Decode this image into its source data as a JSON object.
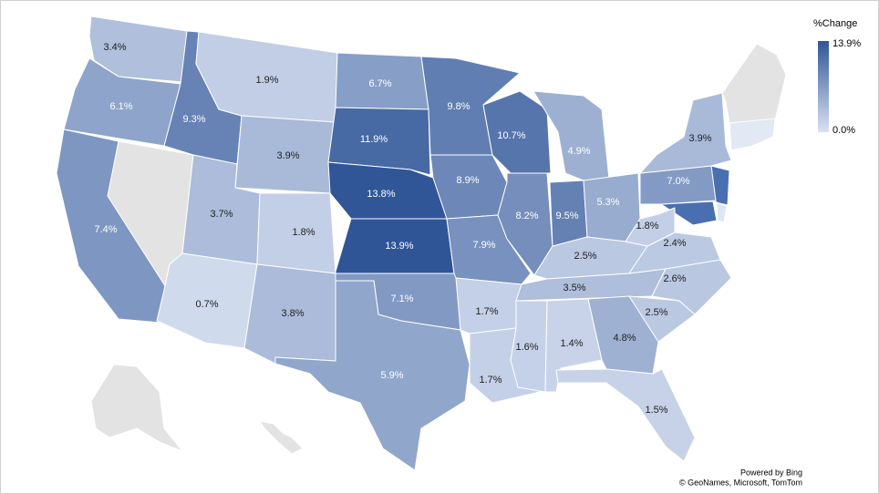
{
  "map": {
    "legend": {
      "title": "%Change",
      "range": [
        0,
        13.9
      ],
      "ticks": [
        {
          "value": 0,
          "label": "0.0%"
        },
        {
          "value": 13.9,
          "label": "13.9%"
        }
      ],
      "colors": [
        "#d9e1f2",
        "#2f5597"
      ]
    },
    "regions": [
      {
        "value": 3.4,
        "value_label": "3.4%"
      },
      {
        "value": 6.1,
        "value_label": "6.1%"
      },
      {
        "value": 7.4,
        "value_label": "7.4%"
      },
      {
        "value": 9.3,
        "value_label": "9.3%"
      },
      {
        "value": 1.9,
        "value_label": "1.9%"
      },
      {
        "value": 3.9,
        "value_label": "3.9%"
      },
      {
        "value": 3.7,
        "value_label": "3.7%"
      },
      {
        "value": 0.7,
        "value_label": "0.7%"
      },
      {
        "value": 1.8,
        "value_label": "1.8%"
      },
      {
        "value": 3.8,
        "value_label": "3.8%"
      },
      {
        "value": 6.7,
        "value_label": "6.7%"
      },
      {
        "value": 11.9,
        "value_label": "11.9%"
      },
      {
        "value": 13.8,
        "value_label": "13.8%"
      },
      {
        "value": 13.9,
        "value_label": "13.9%"
      },
      {
        "value": 7.1,
        "value_label": "7.1%"
      },
      {
        "value": 5.9,
        "value_label": "5.9%"
      },
      {
        "value": 9.8,
        "value_label": "9.8%"
      },
      {
        "value": 8.9,
        "value_label": "8.9%"
      },
      {
        "value": 7.9,
        "value_label": "7.9%"
      },
      {
        "value": 1.7,
        "value_label": "1.7%"
      },
      {
        "value": 1.7,
        "value_label": "1.7%"
      },
      {
        "value": 10.7,
        "value_label": "10.7%"
      },
      {
        "value": 8.2,
        "value_label": "8.2%"
      },
      {
        "value": 9.5,
        "value_label": "9.5%"
      },
      {
        "value": 4.9,
        "value_label": "4.9%"
      },
      {
        "value": 5.3,
        "value_label": "5.3%"
      },
      {
        "value": 2.5,
        "value_label": "2.5%"
      },
      {
        "value": 3.5,
        "value_label": "3.5%"
      },
      {
        "value": 1.6,
        "value_label": "1.6%"
      },
      {
        "value": 1.4,
        "value_label": "1.4%"
      },
      {
        "value": 4.8,
        "value_label": "4.8%"
      },
      {
        "value": 1.5,
        "value_label": "1.5%"
      },
      {
        "value": 2.5,
        "value_label": "2.5%"
      },
      {
        "value": 2.6,
        "value_label": "2.6%"
      },
      {
        "value": 2.4,
        "value_label": "2.4%"
      },
      {
        "value": 1.8,
        "value_label": "1.8%"
      },
      {
        "value": 7.0,
        "value_label": "7.0%"
      },
      {
        "value": 3.9,
        "value_label": "3.9%"
      }
    ]
  },
  "attribution": [
    "Powered by Bing",
    "© GeoNames, Microsoft, TomTom"
  ]
}
